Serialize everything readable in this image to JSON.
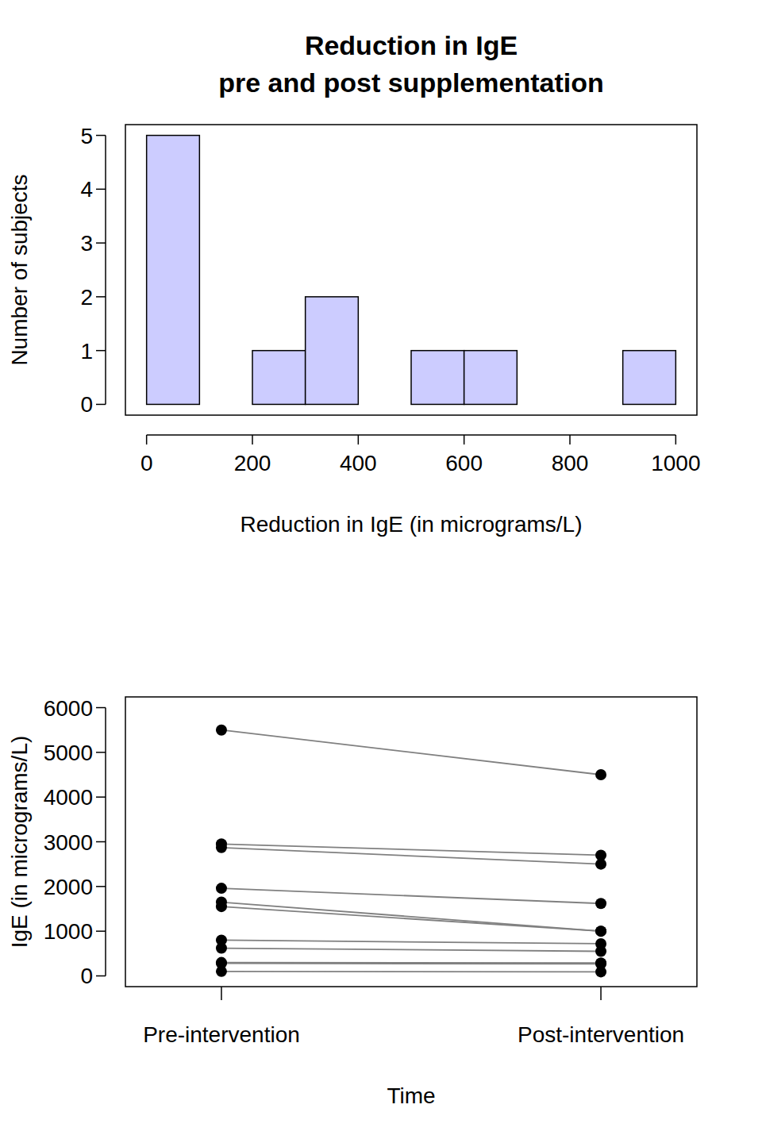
{
  "chart_data": [
    {
      "type": "histogram",
      "title": [
        "Reduction in IgE",
        "pre and post supplementation"
      ],
      "x_label": "Reduction in IgE (in micrograms/L)",
      "y_label": "Number of subjects",
      "bins": [
        0,
        100,
        200,
        300,
        400,
        500,
        600,
        700,
        800,
        900,
        1000
      ],
      "counts": [
        5,
        0,
        1,
        2,
        0,
        1,
        1,
        0,
        0,
        1
      ],
      "color": "#ccccff",
      "xlim": [
        -40,
        1040
      ],
      "ylim": [
        -0.2,
        5.2
      ],
      "xticks": [
        0,
        200,
        400,
        600,
        800,
        1000
      ],
      "yticks": [
        0,
        1,
        2,
        3,
        4,
        5
      ]
    },
    {
      "type": "line",
      "x_label": "Time",
      "y_label": "IgE (in micrograms/L)",
      "categories": [
        "Pre-intervention",
        "Post-intervention"
      ],
      "series": [
        {
          "color": "#808080",
          "marker": "circle",
          "values": [
            5500,
            4500
          ]
        },
        {
          "color": "#808080",
          "marker": "circle",
          "values": [
            2950,
            2700
          ]
        },
        {
          "color": "#808080",
          "marker": "circle",
          "values": [
            2870,
            2500
          ]
        },
        {
          "color": "#808080",
          "marker": "circle",
          "values": [
            1960,
            1620
          ]
        },
        {
          "color": "#808080",
          "marker": "circle",
          "values": [
            1650,
            1000
          ]
        },
        {
          "color": "#808080",
          "marker": "circle",
          "values": [
            1550,
            1000
          ]
        },
        {
          "color": "#808080",
          "marker": "circle",
          "values": [
            800,
            720
          ]
        },
        {
          "color": "#808080",
          "marker": "circle",
          "values": [
            620,
            550
          ]
        },
        {
          "color": "#808080",
          "marker": "circle",
          "values": [
            300,
            290
          ]
        },
        {
          "color": "#808080",
          "marker": "circle",
          "values": [
            280,
            270
          ]
        },
        {
          "color": "#808080",
          "marker": "circle",
          "values": [
            100,
            90
          ]
        }
      ],
      "ylim": [
        -240,
        6240
      ],
      "yticks": [
        0,
        1000,
        2000,
        3000,
        4000,
        5000,
        6000
      ]
    }
  ]
}
